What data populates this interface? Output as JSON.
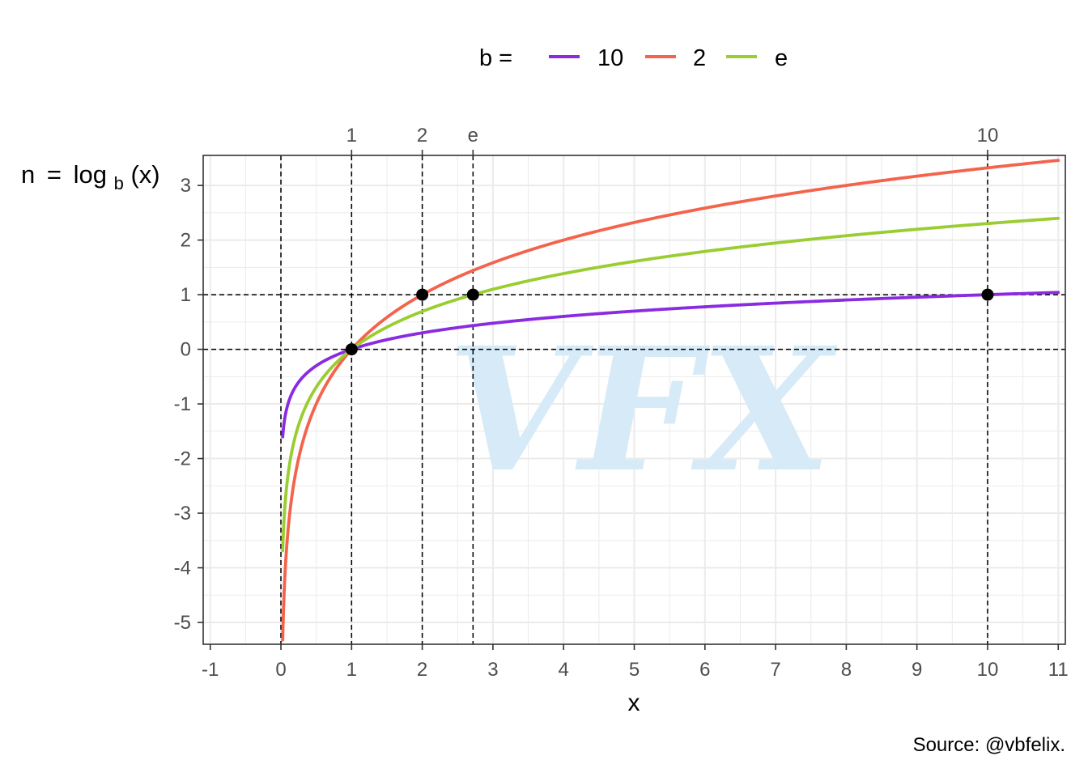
{
  "chart_data": {
    "type": "line",
    "title": "",
    "xlabel": "x",
    "ylabel": {
      "prefix": "n",
      "eq": "=",
      "func": "log",
      "sub": "b",
      "arg": "(x)"
    },
    "xlim": [
      -1.1,
      11.1
    ],
    "ylim": [
      -5.4,
      3.55
    ],
    "x_ticks": [
      -1,
      0,
      1,
      2,
      3,
      4,
      5,
      6,
      7,
      8,
      9,
      10,
      11
    ],
    "x_tick_labels": [
      "-1",
      "0",
      "1",
      "2",
      "3",
      "4",
      "5",
      "6",
      "7",
      "8",
      "9",
      "10",
      "11"
    ],
    "y_ticks": [
      -5,
      -4,
      -3,
      -2,
      -1,
      0,
      1,
      2,
      3
    ],
    "y_tick_labels": [
      "-5",
      "-4",
      "-3",
      "-2",
      "-1",
      "0",
      "1",
      "2",
      "3"
    ],
    "top_ticks": [
      1,
      2,
      2.71828,
      10
    ],
    "top_tick_labels": [
      "1",
      "2",
      "e",
      "10"
    ],
    "grid": true,
    "legend": {
      "title": "b =",
      "position": "top",
      "entries": [
        "10",
        "2",
        "e"
      ]
    },
    "series": [
      {
        "name": "10",
        "base": 10,
        "color": "#8a2be2",
        "x_start": 0.025,
        "x_end": 11
      },
      {
        "name": "2",
        "base": 2,
        "color": "#f4634b",
        "x_start": 0.025,
        "x_end": 11
      },
      {
        "name": "e",
        "base": 2.71828,
        "color": "#9acd32",
        "x_start": 0.025,
        "x_end": 11
      }
    ],
    "points": [
      {
        "x": 1,
        "y": 0
      },
      {
        "x": 2,
        "y": 1
      },
      {
        "x": 2.71828,
        "y": 1
      },
      {
        "x": 10,
        "y": 1
      }
    ],
    "reference_lines": {
      "horizontal": [
        0,
        1
      ],
      "vertical": [
        0,
        1,
        2,
        2.71828,
        10
      ]
    },
    "caption": "Source: @vbfelix.",
    "watermark": "VFX"
  }
}
